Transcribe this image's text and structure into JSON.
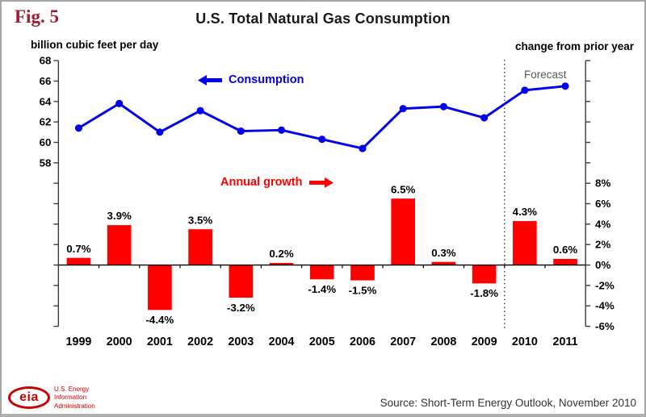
{
  "figure": {
    "label": "Fig. 5"
  },
  "header": {
    "title": "U.S. Total Natural Gas Consumption"
  },
  "axes": {
    "left_title": "billion cubic feet per day",
    "right_title": "change from prior year"
  },
  "legend": {
    "consumption": "Consumption",
    "annual_growth": "Annual growth"
  },
  "forecast_label": "Forecast",
  "footer": {
    "source": "Source: Short-Term Energy Outlook, November 2010",
    "logo": {
      "acronym": "eia",
      "lines": [
        "U.S. Energy",
        "Information",
        "Administration"
      ]
    }
  },
  "colors": {
    "line": "#0000ee",
    "bar": "#ff0000",
    "fig_label": "#9e1b32",
    "forecast": "#595959",
    "logo": "#cc0000",
    "axis": "#3a3a3a",
    "text": "#000000"
  },
  "chart_data": {
    "type": "combo",
    "title": "U.S. Total Natural Gas Consumption",
    "categories": [
      "1999",
      "2000",
      "2001",
      "2002",
      "2003",
      "2004",
      "2005",
      "2006",
      "2007",
      "2008",
      "2009",
      "2010",
      "2011"
    ],
    "series": [
      {
        "name": "Consumption",
        "type": "line",
        "axis": "left",
        "unit": "billion cubic feet per day",
        "color": "#0000ee",
        "values": [
          61.4,
          63.8,
          61.0,
          63.1,
          61.1,
          61.2,
          60.3,
          59.4,
          63.3,
          63.5,
          62.4,
          65.1,
          65.5
        ]
      },
      {
        "name": "Annual growth",
        "type": "bar",
        "axis": "right",
        "unit": "percent change from prior year",
        "color": "#ff0000",
        "values": [
          0.7,
          3.9,
          -4.4,
          3.5,
          -3.2,
          0.2,
          -1.4,
          -1.5,
          6.5,
          0.3,
          -1.8,
          4.3,
          0.6
        ],
        "labels": [
          "0.7%",
          "3.9%",
          "-4.4%",
          "3.5%",
          "-3.2%",
          "0.2%",
          "-1.4%",
          "-1.5%",
          "6.5%",
          "0.3%",
          "-1.8%",
          "4.3%",
          "0.6%"
        ]
      }
    ],
    "left_axis": {
      "title": "billion cubic feet per day",
      "tick_labels": [
        "68",
        "66",
        "64",
        "62",
        "60",
        "58"
      ],
      "tick_values": [
        68,
        66,
        64,
        62,
        60,
        58
      ],
      "range": [
        42,
        68
      ],
      "tick_step": 2
    },
    "right_axis": {
      "title": "change from prior year",
      "tick_labels": [
        "8%",
        "6%",
        "4%",
        "2%",
        "0%",
        "-2%",
        "-4%",
        "-6%"
      ],
      "tick_values": [
        8,
        6,
        4,
        2,
        0,
        -2,
        -4,
        -6
      ],
      "range": [
        -6,
        20
      ],
      "tick_step": 2
    },
    "forecast_start_category": "2010",
    "grid": false,
    "legend_position": "inside-annotations"
  }
}
